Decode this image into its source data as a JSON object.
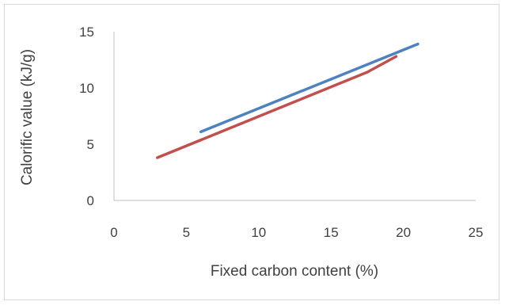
{
  "chart_data": {
    "type": "line",
    "title": "",
    "xlabel": "Fixed carbon content (%)",
    "ylabel": "Calorific value (kJ/g)",
    "xlim": [
      0,
      25
    ],
    "ylim": [
      0,
      15
    ],
    "x_ticks": [
      "0",
      "5",
      "10",
      "15",
      "20",
      "25"
    ],
    "y_ticks": [
      "0",
      "5",
      "10",
      "15"
    ],
    "grid": false,
    "legend": "none",
    "series": [
      {
        "color": "#4e81bd",
        "points": [
          [
            6,
            6.1
          ],
          [
            21,
            13.9
          ]
        ]
      },
      {
        "color": "#c0504d",
        "points": [
          [
            3,
            3.8
          ],
          [
            17.5,
            11.4
          ],
          [
            19.5,
            12.8
          ]
        ]
      }
    ]
  }
}
